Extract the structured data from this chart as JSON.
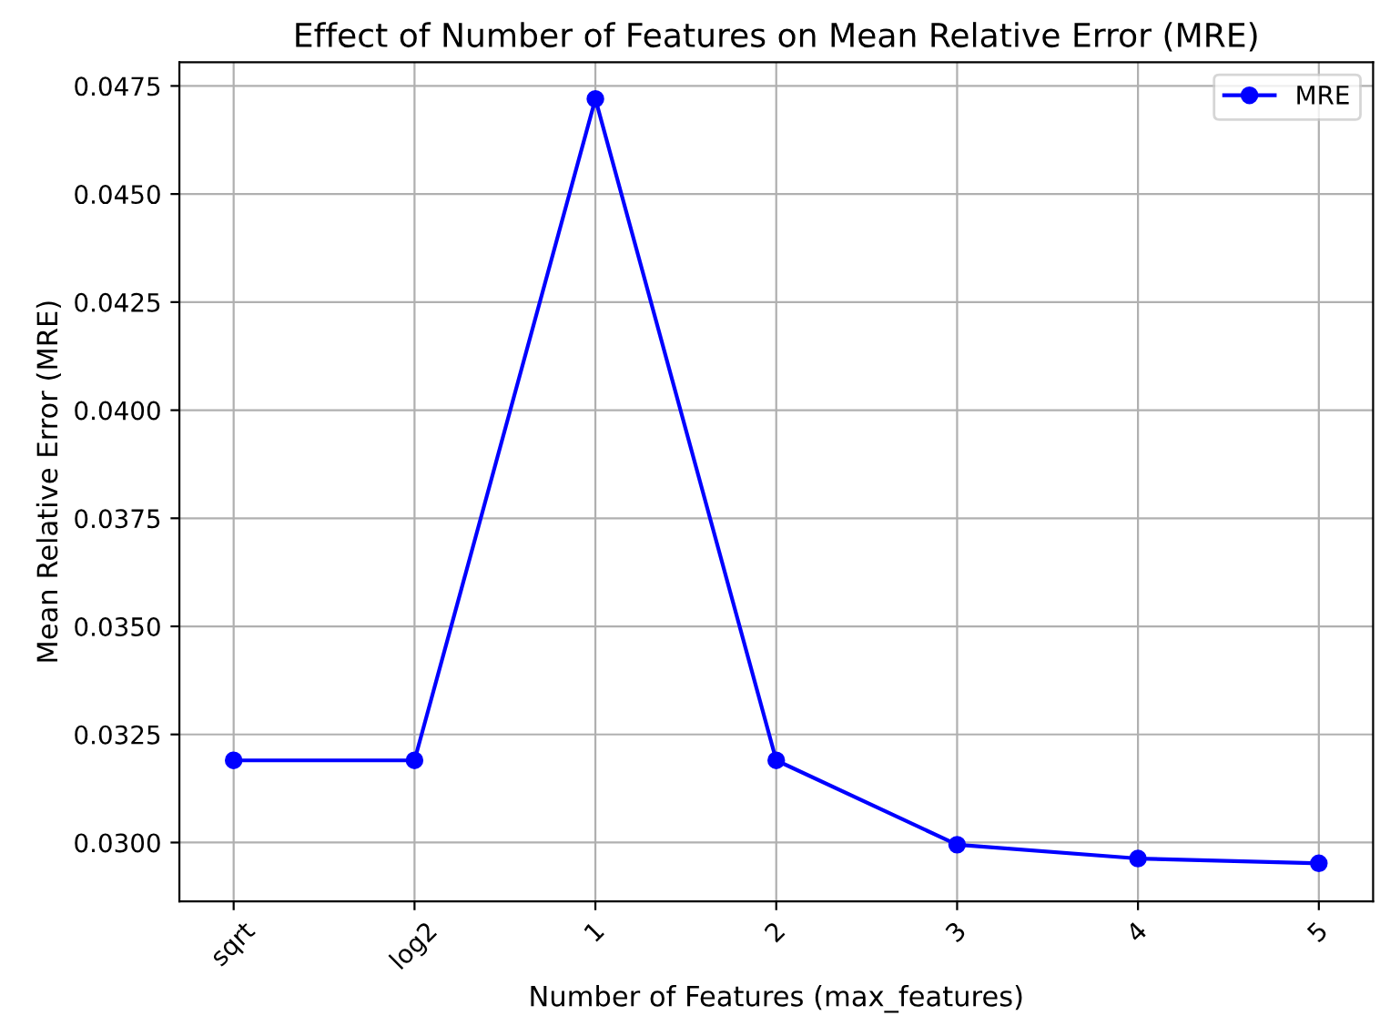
{
  "chart_data": {
    "type": "line",
    "title": "Effect of Number of Features on Mean Relative Error (MRE)",
    "xlabel": "Number of Features (max_features)",
    "ylabel": "Mean Relative Error (MRE)",
    "categories": [
      "sqrt",
      "log2",
      "1",
      "2",
      "3",
      "4",
      "5"
    ],
    "series": [
      {
        "name": "MRE",
        "color": "#0000ff",
        "values": [
          0.0319,
          0.0319,
          0.0472,
          0.0319,
          0.02995,
          0.02963,
          0.02952
        ]
      }
    ],
    "ylim": [
      0.02864,
      0.04805
    ],
    "yticks": [
      {
        "value": 0.03,
        "label": "0.0300"
      },
      {
        "value": 0.0325,
        "label": "0.0325"
      },
      {
        "value": 0.035,
        "label": "0.0350"
      },
      {
        "value": 0.0375,
        "label": "0.0375"
      },
      {
        "value": 0.04,
        "label": "0.0400"
      },
      {
        "value": 0.0425,
        "label": "0.0425"
      },
      {
        "value": 0.045,
        "label": "0.0450"
      },
      {
        "value": 0.0475,
        "label": "0.0475"
      }
    ],
    "grid": true,
    "legend": "top right",
    "marker": "circle",
    "line_style": "solid"
  }
}
